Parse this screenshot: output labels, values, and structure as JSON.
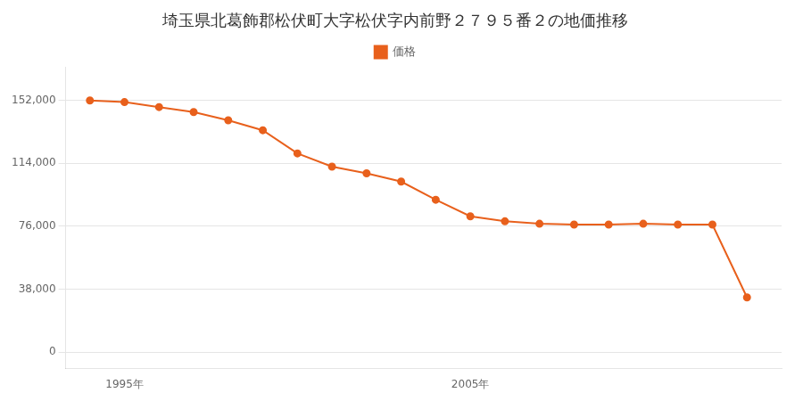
{
  "chart_data": {
    "type": "line",
    "title": "埼玉県北葛飾郡松伏町大字松伏字内前野２７９５番２の地価推移",
    "x": [
      1994,
      1995,
      1996,
      1997,
      1998,
      1999,
      2000,
      2001,
      2002,
      2003,
      2004,
      2005,
      2006,
      2007,
      2008,
      2009,
      2010,
      2011,
      2012,
      2013
    ],
    "series": [
      {
        "name": "価格",
        "color": "#e8601c",
        "marker": "circle",
        "values": [
          152000,
          151000,
          148000,
          145000,
          140000,
          134000,
          120000,
          112000,
          108000,
          103000,
          92000,
          82000,
          79000,
          77500,
          77000,
          77000,
          77500,
          77000,
          77000,
          33000
        ]
      }
    ],
    "xlim": [
      1993.3,
      2014.0
    ],
    "xticks": [
      {
        "value": 1995,
        "label": "1995年"
      },
      {
        "value": 2005,
        "label": "2005年"
      }
    ],
    "ylim": [
      -10000,
      172000
    ],
    "yticks": [
      0,
      {
        "value": 38000,
        "label": "38,000"
      },
      {
        "value": 76000,
        "label": "76,000"
      },
      {
        "value": 114000,
        "label": "114,000"
      },
      {
        "value": 152000,
        "label": "152,000"
      }
    ],
    "grid": "y",
    "legend": "top"
  }
}
